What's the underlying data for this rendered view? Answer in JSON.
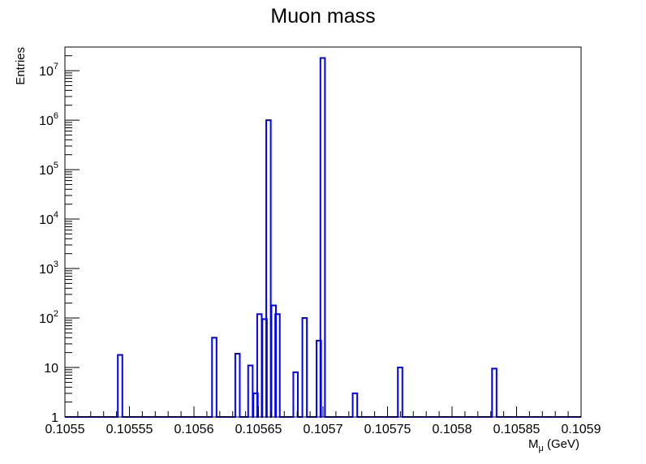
{
  "chart_data": {
    "type": "histogram",
    "title": "Muon mass",
    "xlabel_main": "M",
    "xlabel_sub": "μ",
    "xlabel_unit": " (GeV)",
    "ylabel": "Entries",
    "y_scale": "log",
    "xlim": [
      0.1055,
      0.1059
    ],
    "ylim": [
      1,
      30000000
    ],
    "bin_width": 3.5e-06,
    "x_tick_labels": [
      "0.1055",
      "0.10555",
      "0.1056",
      "0.10565",
      "0.1057",
      "0.10575",
      "0.1058",
      "0.10585",
      "0.1059"
    ],
    "x_tick_values": [
      0.1055,
      0.10555,
      0.1056,
      0.10565,
      0.1057,
      0.10575,
      0.1058,
      0.10585,
      0.1059
    ],
    "y_tick_labels": [
      {
        "base": "1",
        "exp": "",
        "value": 1
      },
      {
        "base": "10",
        "exp": "",
        "value": 10
      },
      {
        "base": "10",
        "exp": "2",
        "value": 100
      },
      {
        "base": "10",
        "exp": "3",
        "value": 1000
      },
      {
        "base": "10",
        "exp": "4",
        "value": 10000
      },
      {
        "base": "10",
        "exp": "5",
        "value": 100000
      },
      {
        "base": "10",
        "exp": "6",
        "value": 1000000
      },
      {
        "base": "10",
        "exp": "7",
        "value": 10000000
      }
    ],
    "bins": [
      {
        "x": 0.105541,
        "y": 18
      },
      {
        "x": 0.105614,
        "y": 40
      },
      {
        "x": 0.105632,
        "y": 19
      },
      {
        "x": 0.105642,
        "y": 11
      },
      {
        "x": 0.105646,
        "y": 3
      },
      {
        "x": 0.105649,
        "y": 120
      },
      {
        "x": 0.105653,
        "y": 95
      },
      {
        "x": 0.105656,
        "y": 1000000
      },
      {
        "x": 0.10566,
        "y": 180
      },
      {
        "x": 0.105663,
        "y": 120
      },
      {
        "x": 0.105677,
        "y": 8
      },
      {
        "x": 0.105684,
        "y": 100
      },
      {
        "x": 0.105695,
        "y": 35
      },
      {
        "x": 0.105698,
        "y": 18000000
      },
      {
        "x": 0.105723,
        "y": 3
      },
      {
        "x": 0.105758,
        "y": 10
      },
      {
        "x": 0.105831,
        "y": 9.5
      }
    ],
    "line_color": "#0000ff",
    "grid": false,
    "legend": "none"
  }
}
